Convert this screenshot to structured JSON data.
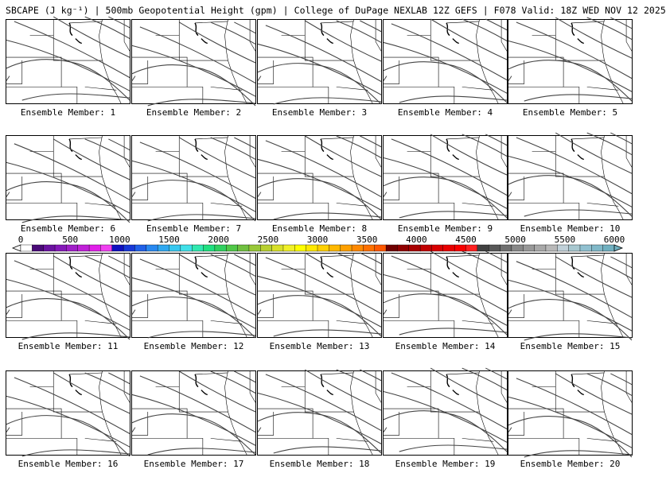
{
  "header": {
    "title": "SBCAPE (J kg⁻¹) | 500mb Geopotential Height (gpm) | College of DuPage NEXLAB 12Z GEFS | F078 Valid: 18Z WED NOV 12 2025"
  },
  "colorbar": {
    "tick_labels": [
      "0",
      "500",
      "1000",
      "1500",
      "2000",
      "2500",
      "3000",
      "3500",
      "4000",
      "4500",
      "5000",
      "5500",
      "6000"
    ],
    "colors": [
      "#ffffff",
      "#4a0a78",
      "#6a12a0",
      "#8418b8",
      "#a01ec8",
      "#c020d8",
      "#e020e8",
      "#f040f0",
      "#1010c0",
      "#1838d8",
      "#2060e8",
      "#2888f0",
      "#30a8f0",
      "#38c8f0",
      "#40e0e8",
      "#30e8b0",
      "#20e080",
      "#30d060",
      "#50c848",
      "#70c040",
      "#98c838",
      "#b8d030",
      "#d8e028",
      "#f0f028",
      "#ffff00",
      "#ffe800",
      "#ffd000",
      "#ffb800",
      "#ffa000",
      "#ff8800",
      "#ff7000",
      "#ff5800",
      "#700000",
      "#900000",
      "#a80000",
      "#c00000",
      "#d80000",
      "#e80000",
      "#f80000",
      "#ff2020",
      "#404040",
      "#585858",
      "#707070",
      "#888888",
      "#989898",
      "#a8a8a8",
      "#b8b8b8",
      "#c0d0d8",
      "#a8c8d0",
      "#90c0d0",
      "#80b8c8",
      "#70b0c0"
    ]
  },
  "panels": [
    {
      "label": "Ensemble Member: 1"
    },
    {
      "label": "Ensemble Member: 2"
    },
    {
      "label": "Ensemble Member: 3"
    },
    {
      "label": "Ensemble Member: 4"
    },
    {
      "label": "Ensemble Member: 5"
    },
    {
      "label": "Ensemble Member: 6"
    },
    {
      "label": "Ensemble Member: 7"
    },
    {
      "label": "Ensemble Member: 8"
    },
    {
      "label": "Ensemble Member: 9"
    },
    {
      "label": "Ensemble Member: 10"
    },
    {
      "label": "Ensemble Member: 11"
    },
    {
      "label": "Ensemble Member: 12"
    },
    {
      "label": "Ensemble Member: 13"
    },
    {
      "label": "Ensemble Member: 14"
    },
    {
      "label": "Ensemble Member: 15"
    },
    {
      "label": "Ensemble Member: 16"
    },
    {
      "label": "Ensemble Member: 17"
    },
    {
      "label": "Ensemble Member: 18"
    },
    {
      "label": "Ensemble Member: 19"
    },
    {
      "label": "Ensemble Member: 20"
    }
  ]
}
